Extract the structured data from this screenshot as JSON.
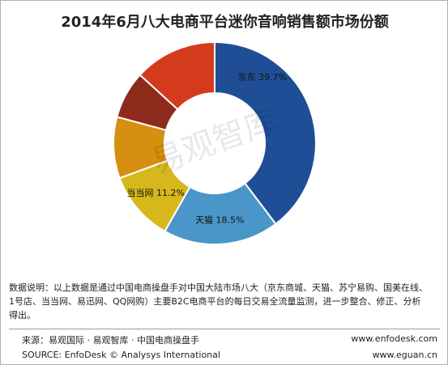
{
  "chart_data": {
    "type": "pie",
    "donut": true,
    "title": "2014年6月八大电商平台迷你音响销售额市场份额",
    "slices": [
      {
        "label": "京东",
        "value": 39.7,
        "value_text": "39.7%",
        "color": "#1f4e96",
        "labeled": true
      },
      {
        "label": "天猫",
        "value": 18.5,
        "value_text": "18.5%",
        "color": "#4a96c8",
        "labeled": true
      },
      {
        "label": "当当网",
        "value": 11.2,
        "value_text": "11.2%",
        "color": "#d6b81c",
        "labeled": true
      },
      {
        "label": "",
        "value": 9.8,
        "value_text": "",
        "color": "#d68f10",
        "labeled": false
      },
      {
        "label": "",
        "value": 7.6,
        "value_text": "",
        "color": "#8e2a1c",
        "labeled": false
      },
      {
        "label": "",
        "value": 13.2,
        "value_text": "",
        "color": "#d43a1c",
        "labeled": false
      }
    ],
    "watermark": "易观智库"
  },
  "note": {
    "line1": "数据说明：以上数据是通过中国电商操盘手对中国大陆市场八大（京东商城、天猫、苏宁易购、国美在线、",
    "line2": "1号店、当当网、易迅网、QQ网购）主要B2C电商平台的每日交易全流量监测，进一步整合、修正、分析",
    "line3": "得出。"
  },
  "footer": {
    "source_cn": "来源：易观国际 · 易观智库 · 中国电商操盘手",
    "source_en": "SOURCE: EnfoDesk © Analysys International",
    "url1": "www.enfodesk.com",
    "url2": "www.eguan.cn"
  }
}
